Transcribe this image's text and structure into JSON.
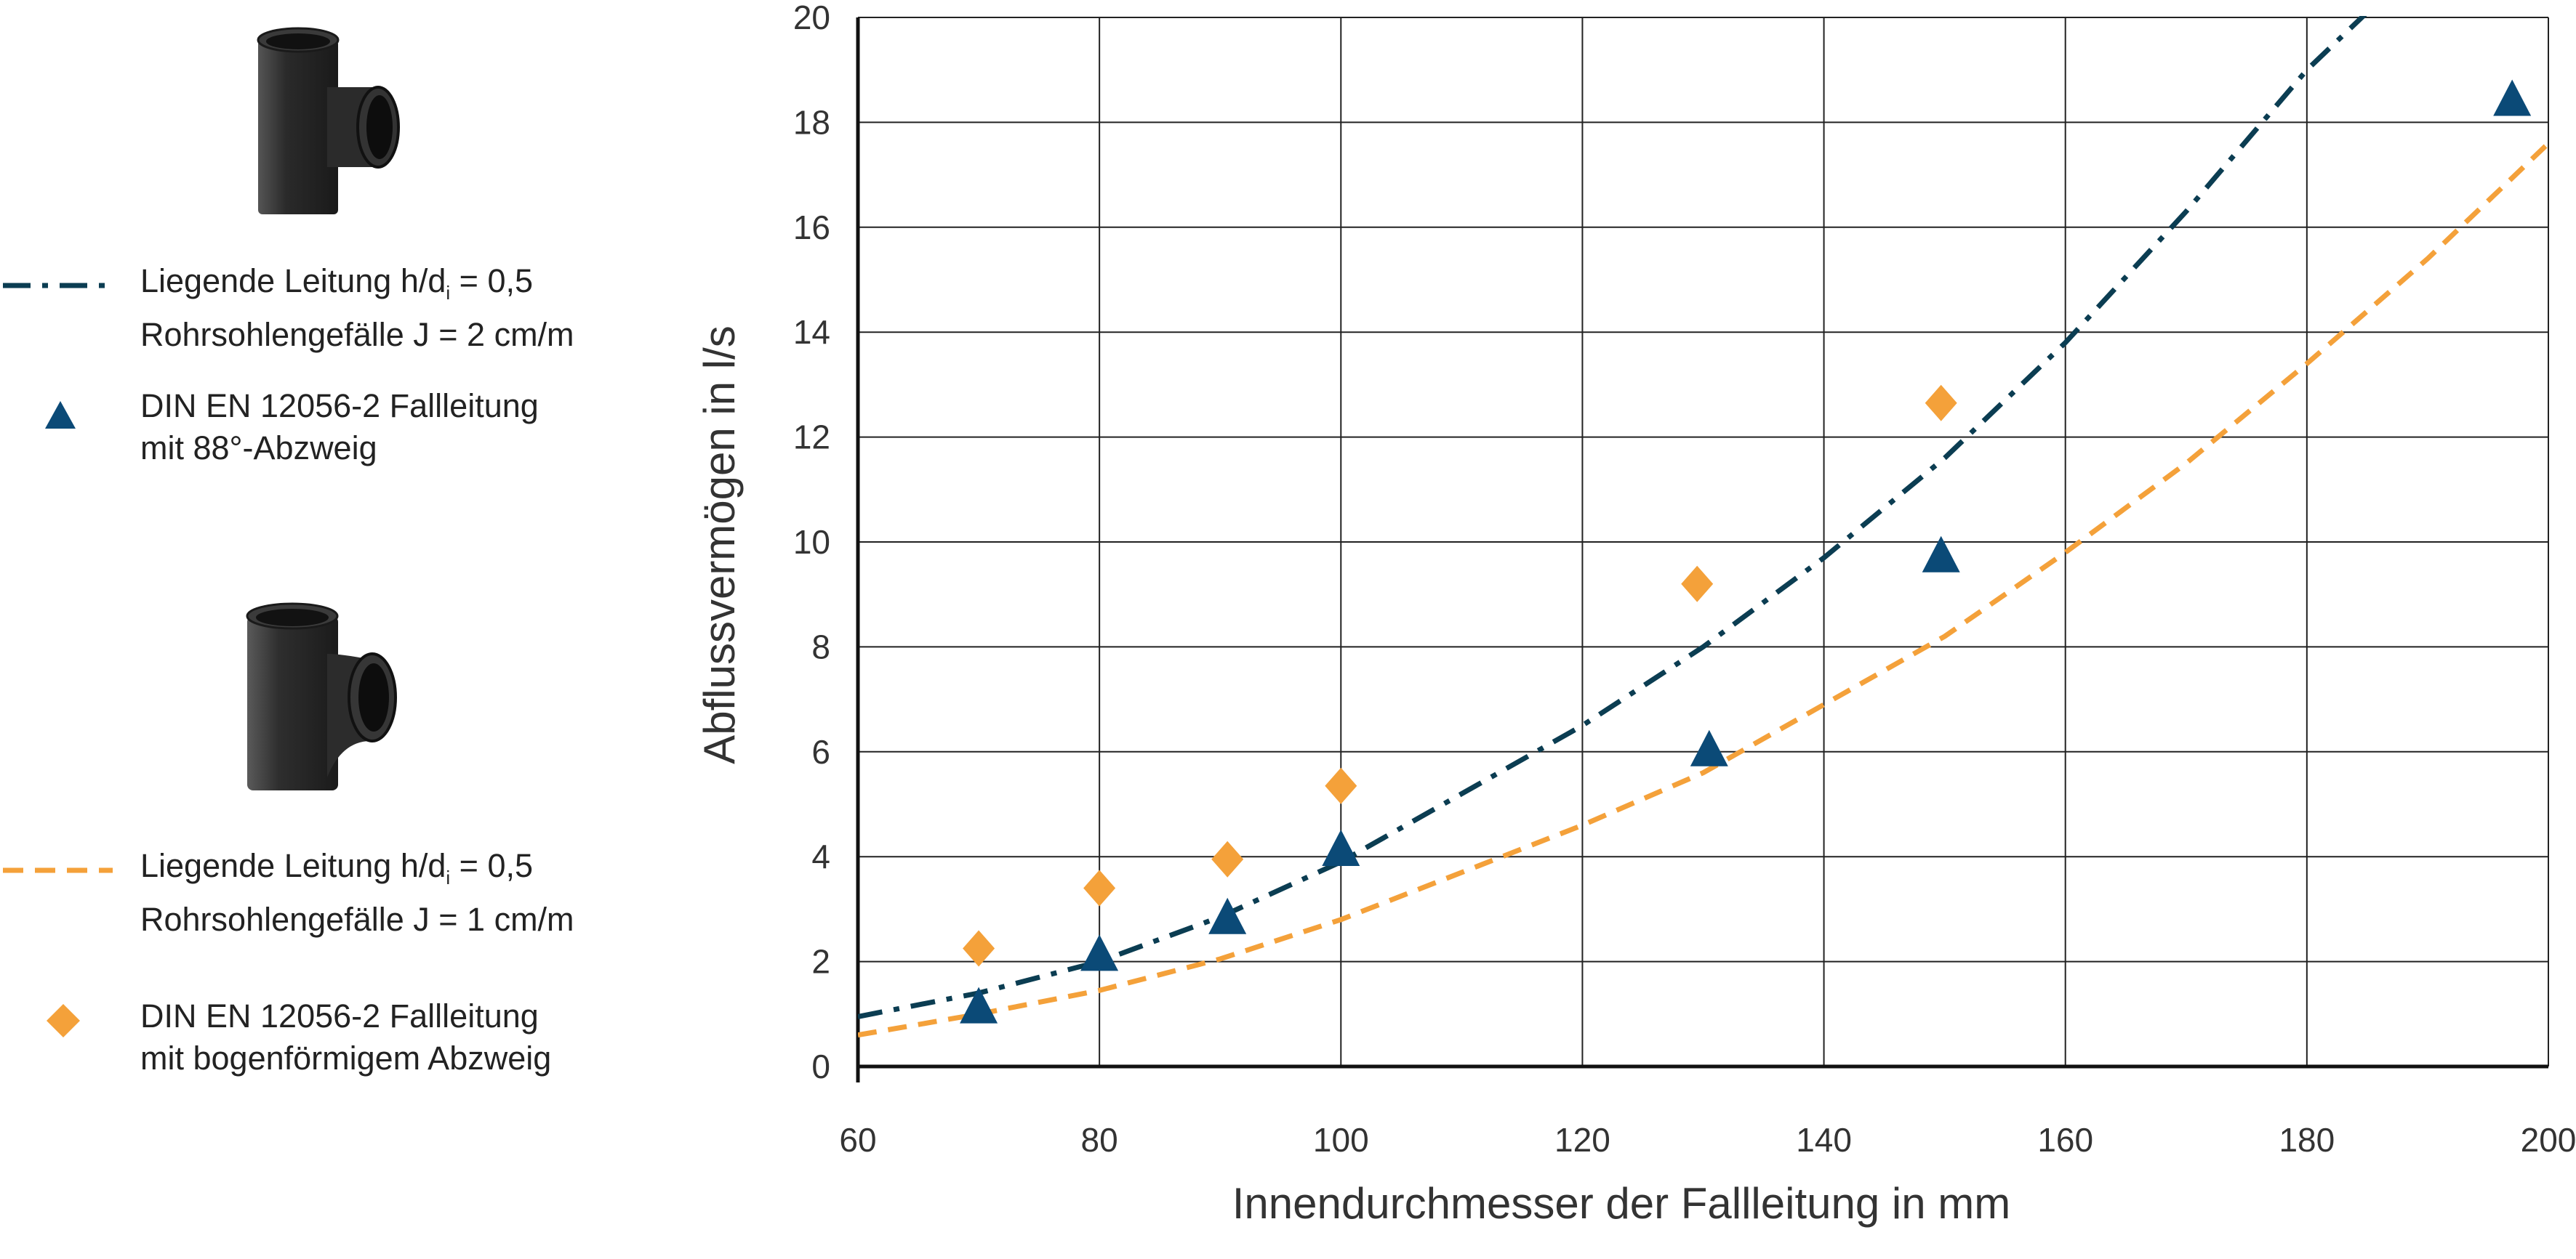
{
  "legend": {
    "items": [
      {
        "line1_prefix": "Liegende Leitung h/d",
        "line1_sub": "i",
        "line1_suffix": " = 0,5",
        "line2": "Rohrsohlengefälle J = 2 cm/m",
        "marker": "dash-dot-line",
        "color": "#0b3d52"
      },
      {
        "line1": "DIN EN 12056-2 Fallleitung",
        "line2": "mit 88°-Abzweig",
        "marker": "triangle",
        "color": "#0b4a77"
      },
      {
        "line1_prefix": "Liegende Leitung h/d",
        "line1_sub": "i",
        "line1_suffix": " = 0,5",
        "line2": "Rohrsohlengefälle J = 1 cm/m",
        "marker": "dashed-line",
        "color": "#f4a13a"
      },
      {
        "line1": "DIN EN 12056-2 Fallleitung",
        "line2": "mit bogenförmigem Abzweig",
        "marker": "diamond",
        "color": "#f4a13a"
      }
    ],
    "images": [
      "tee-fitting-88-icon",
      "tee-fitting-swept-icon"
    ]
  },
  "chart_data": {
    "type": "scatter",
    "xlabel": "Innendurchmesser der Fallleitung in mm",
    "ylabel": "Abflussvermögen in l/s",
    "xlim": [
      60,
      200
    ],
    "ylim": [
      0,
      20
    ],
    "xticks": [
      60,
      80,
      100,
      120,
      140,
      160,
      180,
      200
    ],
    "yticks": [
      0,
      2,
      4,
      6,
      8,
      10,
      12,
      14,
      16,
      18,
      20
    ],
    "grid": true,
    "series": [
      {
        "name": "Liegende Leitung h/di = 0,5 Rohrsohlengefälle J = 2 cm/m",
        "kind": "line",
        "style": "dash-dot",
        "color": "#0b3d52",
        "x": [
          60,
          70,
          80,
          90,
          100,
          110,
          120,
          130,
          140,
          150,
          160,
          170,
          180,
          185
        ],
        "y": [
          0.95,
          1.4,
          2.0,
          2.85,
          3.9,
          5.2,
          6.5,
          8.0,
          9.7,
          11.6,
          13.8,
          16.3,
          19.0,
          20.1
        ]
      },
      {
        "name": "DIN EN 12056-2 Fallleitung mit 88°-Abzweig",
        "kind": "points",
        "marker": "triangle",
        "color": "#0b4a77",
        "x": [
          70,
          80,
          90.6,
          100,
          130.5,
          149.7,
          197
        ],
        "y": [
          1.1,
          2.1,
          2.8,
          4.1,
          6.0,
          9.7,
          18.4
        ]
      },
      {
        "name": "Liegende Leitung h/di = 0,5 Rohrsohlengefälle J = 1 cm/m",
        "kind": "line",
        "style": "dashed",
        "color": "#f4a13a",
        "x": [
          60,
          70,
          80,
          90,
          100,
          110,
          120,
          130,
          140,
          150,
          160,
          170,
          180,
          190,
          200
        ],
        "y": [
          0.6,
          1.0,
          1.45,
          2.05,
          2.8,
          3.7,
          4.6,
          5.6,
          6.9,
          8.2,
          9.8,
          11.5,
          13.4,
          15.4,
          17.6
        ]
      },
      {
        "name": "DIN EN 12056-2 Fallleitung mit bogenförmigem Abzweig",
        "kind": "points",
        "marker": "diamond",
        "color": "#f4a13a",
        "x": [
          70,
          80,
          90.6,
          100,
          129.5,
          149.7
        ],
        "y": [
          2.25,
          3.4,
          3.95,
          5.35,
          9.2,
          12.65
        ]
      }
    ]
  }
}
